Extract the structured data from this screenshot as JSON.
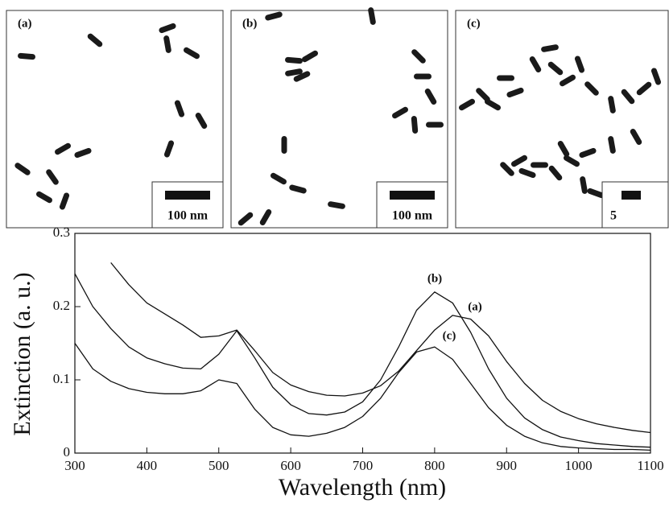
{
  "panels": [
    {
      "label": "(a)",
      "scale_bar": "100 nm"
    },
    {
      "label": "(b)",
      "scale_bar": "100 nm"
    },
    {
      "label": "(c)",
      "scale_bar": "5"
    }
  ],
  "chart_data": {
    "type": "line",
    "x_label": "Wavelength (nm)",
    "y_label": "Extinction (a. u.)",
    "xlim": [
      300,
      1100
    ],
    "ylim": [
      0,
      0.3
    ],
    "xticks": [
      300,
      400,
      500,
      600,
      700,
      800,
      900,
      1000,
      1100
    ],
    "yticks": [
      0,
      0.1,
      0.2,
      0.3
    ],
    "x": [
      300,
      325,
      350,
      375,
      400,
      425,
      450,
      475,
      500,
      525,
      550,
      575,
      600,
      625,
      650,
      675,
      700,
      725,
      750,
      775,
      800,
      825,
      850,
      875,
      900,
      925,
      950,
      975,
      1000,
      1025,
      1050,
      1075,
      1100
    ],
    "series": [
      {
        "name": "(a)",
        "color": "#111111",
        "values": [
          null,
          null,
          0.26,
          0.23,
          0.205,
          0.19,
          0.175,
          0.158,
          0.16,
          0.168,
          0.14,
          0.11,
          0.093,
          0.084,
          0.079,
          0.078,
          0.082,
          0.092,
          0.112,
          0.14,
          0.168,
          0.188,
          0.183,
          0.16,
          0.125,
          0.095,
          0.072,
          0.057,
          0.047,
          0.04,
          0.035,
          0.031,
          0.028
        ]
      },
      {
        "name": "(b)",
        "color": "#111111",
        "values": [
          0.245,
          0.2,
          0.17,
          0.145,
          0.13,
          0.122,
          0.116,
          0.115,
          0.135,
          0.167,
          0.13,
          0.09,
          0.066,
          0.054,
          0.052,
          0.056,
          0.07,
          0.1,
          0.145,
          0.195,
          0.22,
          0.205,
          0.165,
          0.115,
          0.075,
          0.048,
          0.032,
          0.022,
          0.017,
          0.013,
          0.011,
          0.009,
          0.008
        ]
      },
      {
        "name": "(c)",
        "color": "#111111",
        "values": [
          0.15,
          0.115,
          0.098,
          0.088,
          0.083,
          0.081,
          0.081,
          0.085,
          0.1,
          0.095,
          0.06,
          0.035,
          0.025,
          0.023,
          0.027,
          0.035,
          0.05,
          0.075,
          0.11,
          0.138,
          0.145,
          0.128,
          0.095,
          0.062,
          0.038,
          0.023,
          0.014,
          0.009,
          0.007,
          0.006,
          0.005,
          0.005,
          0.004
        ]
      }
    ]
  }
}
